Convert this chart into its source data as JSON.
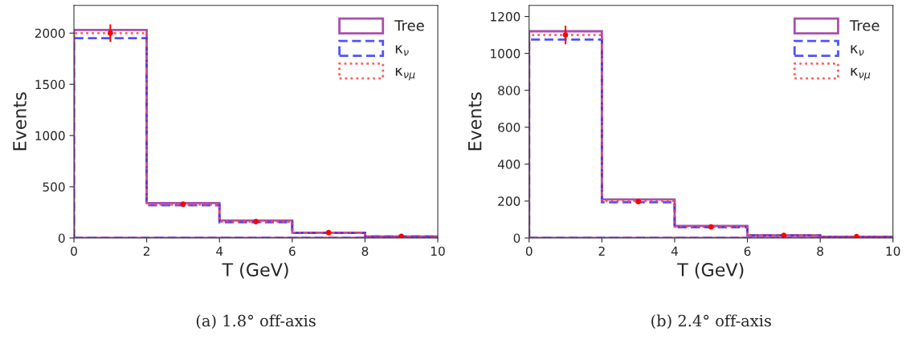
{
  "chart_data": [
    {
      "type": "histogram",
      "xlabel": "T (GeV)",
      "ylabel": "Events",
      "bins": [
        0,
        2,
        4,
        6,
        8,
        10
      ],
      "xlim": [
        0,
        10
      ],
      "xticks": [
        0,
        2,
        4,
        6,
        8,
        10
      ],
      "ylim": [
        0,
        2270
      ],
      "yticks": [
        0,
        500,
        1000,
        1500,
        2000
      ],
      "legend": "top right",
      "grid": false,
      "annotations": [
        "(a) 1.8° off-axis"
      ],
      "series": [
        {
          "name": "Tree",
          "color": "#9b30a0",
          "line_style": "solid",
          "values": [
            2030,
            340,
            170,
            52,
            15
          ]
        },
        {
          "name": "κ$_{ν}$",
          "color": "#3333ff",
          "line_style": "dashed",
          "values": [
            1950,
            320,
            154,
            50,
            14
          ]
        },
        {
          "name": "κ$_{νμ}$",
          "color": "#ff4444",
          "line_style": "dotted",
          "values": [
            2000,
            325,
            160,
            51,
            15
          ]
        },
        {
          "type": "scatter",
          "color": "#ff0000",
          "x": [
            1,
            3,
            5,
            7,
            9
          ],
          "values": [
            2000,
            330,
            160,
            52,
            15
          ],
          "errors": [
            85,
            null,
            null,
            null,
            null
          ],
          "marker": "circle"
        }
      ]
    },
    {
      "type": "histogram",
      "xlabel": "T (GeV)",
      "ylabel": "Events",
      "bins": [
        0,
        2,
        4,
        6,
        8,
        10
      ],
      "xlim": [
        0,
        10
      ],
      "xticks": [
        0,
        2,
        4,
        6,
        8,
        10
      ],
      "ylim": [
        0,
        1260
      ],
      "yticks": [
        0,
        200,
        400,
        600,
        800,
        1000,
        1200
      ],
      "legend": "top right",
      "grid": false,
      "annotations": [
        "(b) 2.4° off-axis"
      ],
      "series": [
        {
          "name": "Tree",
          "color": "#9b30a0",
          "line_style": "solid",
          "values": [
            1120,
            209,
            65,
            14,
            7
          ]
        },
        {
          "name": "κ$_{ν}$",
          "color": "#3333ff",
          "line_style": "dashed",
          "values": [
            1075,
            194,
            58,
            13,
            6
          ]
        },
        {
          "name": "κ$_{νμ}$",
          "color": "#ff4444",
          "line_style": "dotted",
          "values": [
            1100,
            200,
            61,
            14,
            7
          ]
        },
        {
          "type": "scatter",
          "color": "#ff0000",
          "x": [
            1,
            3,
            5,
            7,
            9
          ],
          "values": [
            1100,
            197,
            60,
            14,
            7
          ],
          "errors": [
            50,
            null,
            null,
            null,
            null
          ],
          "marker": "circle"
        }
      ]
    }
  ]
}
